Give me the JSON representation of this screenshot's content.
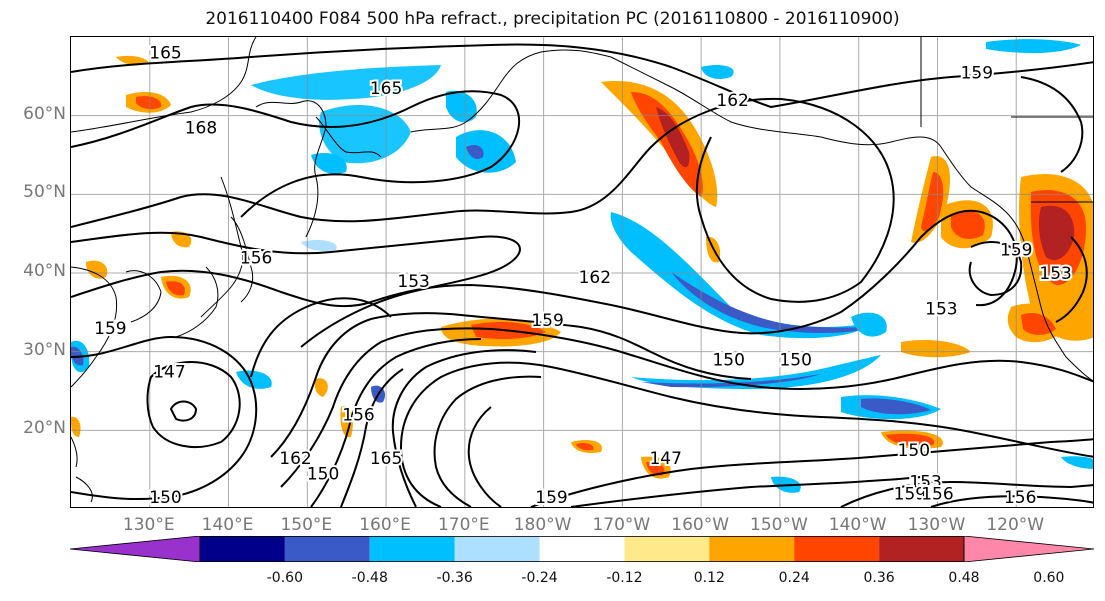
{
  "title": "2016110400 F084 500 hPa refract., precipitation PC (2016110800 - 2016110900)",
  "lat_labels": [
    {
      "text": "60°N",
      "lat": 60
    },
    {
      "text": "50°N",
      "lat": 50
    },
    {
      "text": "40°N",
      "lat": 40
    },
    {
      "text": "30°N",
      "lat": 30
    },
    {
      "text": "20°N",
      "lat": 20
    }
  ],
  "lon_labels": [
    {
      "text": "130°E",
      "lon": 130
    },
    {
      "text": "140°E",
      "lon": 140
    },
    {
      "text": "150°E",
      "lon": 150
    },
    {
      "text": "160°E",
      "lon": 160
    },
    {
      "text": "170°E",
      "lon": 170
    },
    {
      "text": "180°W",
      "lon": 180
    },
    {
      "text": "170°W",
      "lon": 190
    },
    {
      "text": "160°W",
      "lon": 200
    },
    {
      "text": "150°W",
      "lon": 210
    },
    {
      "text": "140°W",
      "lon": 220
    },
    {
      "text": "130°W",
      "lon": 230
    },
    {
      "text": "120°W",
      "lon": 240
    }
  ],
  "map_extent": {
    "lon_min": 120,
    "lon_max": 250,
    "lat_min": 10,
    "lat_max": 70
  },
  "colorbar": {
    "colors": [
      "#9932CC",
      "#00008B",
      "#3A5BC7",
      "#00BFFF",
      "#ADDFFF",
      "#FFFFFF",
      "#FFE98A",
      "#FFA500",
      "#FF4500",
      "#B22222",
      "#FF88AA"
    ],
    "tick_labels": [
      "-0.60",
      "-0.48",
      "-0.36",
      "-0.24",
      "-0.12",
      "0.12",
      "0.24",
      "0.36",
      "0.48",
      "0.60"
    ]
  },
  "contour_labels": [
    {
      "text": "165",
      "lon": 132,
      "lat": 68
    },
    {
      "text": "165",
      "lon": 160,
      "lat": 63.5
    },
    {
      "text": "168",
      "lon": 136.5,
      "lat": 58.5
    },
    {
      "text": "162",
      "lon": 204,
      "lat": 62
    },
    {
      "text": "159",
      "lon": 235,
      "lat": 65.5
    },
    {
      "text": "156",
      "lon": 143.5,
      "lat": 42
    },
    {
      "text": "153",
      "lon": 163.5,
      "lat": 39
    },
    {
      "text": "162",
      "lon": 186.5,
      "lat": 39.5
    },
    {
      "text": "159",
      "lon": 180.5,
      "lat": 34
    },
    {
      "text": "159",
      "lon": 125,
      "lat": 33
    },
    {
      "text": "147",
      "lon": 132.5,
      "lat": 27.5
    },
    {
      "text": "150",
      "lon": 203.5,
      "lat": 29
    },
    {
      "text": "150",
      "lon": 212,
      "lat": 29
    },
    {
      "text": "153",
      "lon": 230.5,
      "lat": 35.5
    },
    {
      "text": "159",
      "lon": 240,
      "lat": 43
    },
    {
      "text": "153",
      "lon": 245,
      "lat": 40
    },
    {
      "text": "162",
      "lon": 148.5,
      "lat": 16.5
    },
    {
      "text": "150",
      "lon": 152,
      "lat": 14.5
    },
    {
      "text": "150",
      "lon": 132,
      "lat": 11.5
    },
    {
      "text": "156",
      "lon": 156.5,
      "lat": 22
    },
    {
      "text": "165",
      "lon": 160,
      "lat": 16.5
    },
    {
      "text": "147",
      "lon": 195.5,
      "lat": 16.5
    },
    {
      "text": "159",
      "lon": 181,
      "lat": 11.5
    },
    {
      "text": "150",
      "lon": 227,
      "lat": 17.5
    },
    {
      "text": "153",
      "lon": 228.5,
      "lat": 13.5
    },
    {
      "text": "159",
      "lon": 226.5,
      "lat": 12
    },
    {
      "text": "156",
      "lon": 230,
      "lat": 12
    },
    {
      "text": "156",
      "lon": 240.5,
      "lat": 11.5
    }
  ]
}
